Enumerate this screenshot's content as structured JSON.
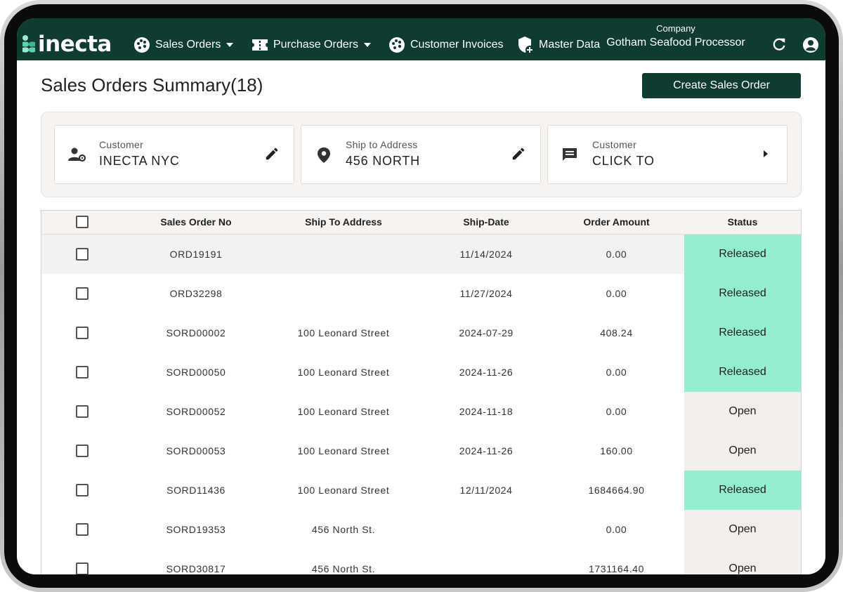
{
  "app": {
    "logo_text": "inecta"
  },
  "nav": {
    "items": [
      {
        "label": "Sales Orders",
        "icon": "palette-icon",
        "has_caret": true
      },
      {
        "label": "Purchase Orders",
        "icon": "ticket-icon",
        "has_caret": true
      },
      {
        "label": "Customer Invoices",
        "icon": "palette-icon",
        "has_caret": false
      },
      {
        "label": "Master Data",
        "icon": "shield-plus-icon",
        "has_caret": false
      }
    ],
    "company_label": "Company",
    "company_value": "Gotham Seafood Processor"
  },
  "page": {
    "title": "Sales Orders Summary(18)",
    "create_button": "Create Sales Order"
  },
  "filters": [
    {
      "label": "Customer",
      "value": "INECTA NYC",
      "icon": "user-gear-icon",
      "action_icon": "pencil-icon"
    },
    {
      "label": "Ship to Address",
      "value": "456 NORTH",
      "icon": "location-pin-icon",
      "action_icon": "pencil-icon"
    },
    {
      "label": "Customer",
      "value": "CLICK TO",
      "icon": "comment-icon",
      "action_icon": "chevron-right-icon"
    }
  ],
  "table": {
    "columns": [
      "Sales Order No",
      "Ship To Address",
      "Ship-Date",
      "Order Amount",
      "Status"
    ],
    "rows": [
      {
        "order_no": "ORD19191",
        "address": "",
        "ship_date": "11/14/2024",
        "amount": "0.00",
        "status": "Released"
      },
      {
        "order_no": "ORD32298",
        "address": "",
        "ship_date": "11/27/2024",
        "amount": "0.00",
        "status": "Released"
      },
      {
        "order_no": "SORD00002",
        "address": "100 Leonard Street",
        "ship_date": "2024-07-29",
        "amount": "408.24",
        "status": "Released"
      },
      {
        "order_no": "SORD00050",
        "address": "100 Leonard Street",
        "ship_date": "2024-11-26",
        "amount": "0.00",
        "status": "Released"
      },
      {
        "order_no": "SORD00052",
        "address": "100 Leonard Street",
        "ship_date": "2024-11-18",
        "amount": "0.00",
        "status": "Open"
      },
      {
        "order_no": "SORD00053",
        "address": "100 Leonard Street",
        "ship_date": "2024-11-26",
        "amount": "160.00",
        "status": "Open"
      },
      {
        "order_no": "SORD11436",
        "address": "100 Leonard Street",
        "ship_date": "12/11/2024",
        "amount": "1684664.90",
        "status": "Released"
      },
      {
        "order_no": "SORD19353",
        "address": "456 North St.",
        "ship_date": "",
        "amount": "0.00",
        "status": "Open"
      },
      {
        "order_no": "SORD30817",
        "address": "456 North St.",
        "ship_date": "",
        "amount": "1731164.40",
        "status": "Open"
      }
    ]
  },
  "colors": {
    "brand": "#0e3c32",
    "released": "#93edd0",
    "open": "#f1eeec"
  }
}
